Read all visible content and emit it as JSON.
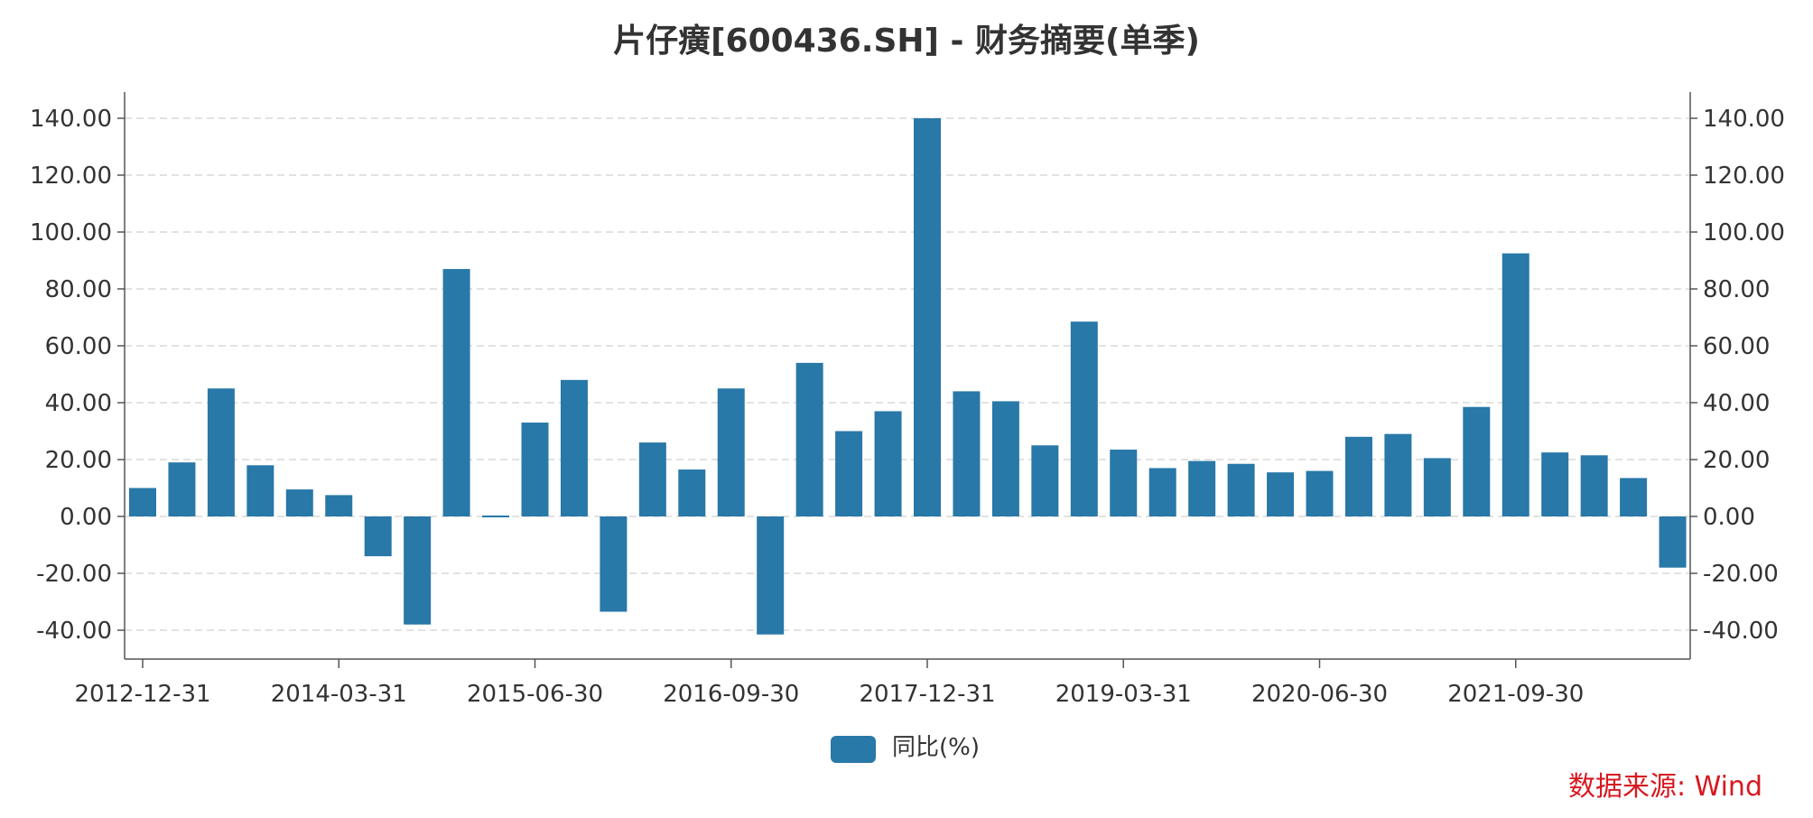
{
  "chart_data": {
    "type": "bar",
    "title": "片仔癀[600436.SH] - 财务摘要(单季)",
    "legend": {
      "labels": [
        "同比(%)"
      ],
      "position": "bottom-center"
    },
    "source": "数据来源: Wind",
    "colors": {
      "bar": "#2878a8",
      "grid": "#d9d9d9",
      "axis": "#555555",
      "source": "#d71920"
    },
    "ylim": [
      -50,
      150
    ],
    "yticks": [
      "-40.00",
      "-20.00",
      "0.00",
      "20.00",
      "40.00",
      "60.00",
      "80.00",
      "100.00",
      "120.00",
      "140.00"
    ],
    "xtick_labels": [
      "2012-12-31",
      "2014-03-31",
      "2015-06-30",
      "2016-09-30",
      "2017-12-31",
      "2019-03-31",
      "2020-06-30",
      "2021-09-30"
    ],
    "xtick_indices": [
      0,
      5,
      10,
      15,
      20,
      25,
      30,
      35
    ],
    "grid": "horizontal dashed",
    "dual_y_axis": true,
    "series": [
      {
        "name": "同比(%)",
        "values": [
          10,
          19,
          45,
          18,
          9.5,
          7.5,
          -14,
          -38,
          87,
          0.5,
          33,
          48,
          -33.5,
          26,
          16.5,
          45,
          -41.5,
          54,
          30,
          37,
          140,
          44,
          40.5,
          25,
          68.5,
          23.5,
          17,
          19.5,
          18.5,
          15.5,
          16,
          28,
          29,
          20.5,
          38.5,
          92.5,
          22.5,
          21.5,
          13.5,
          -18
        ]
      }
    ]
  }
}
